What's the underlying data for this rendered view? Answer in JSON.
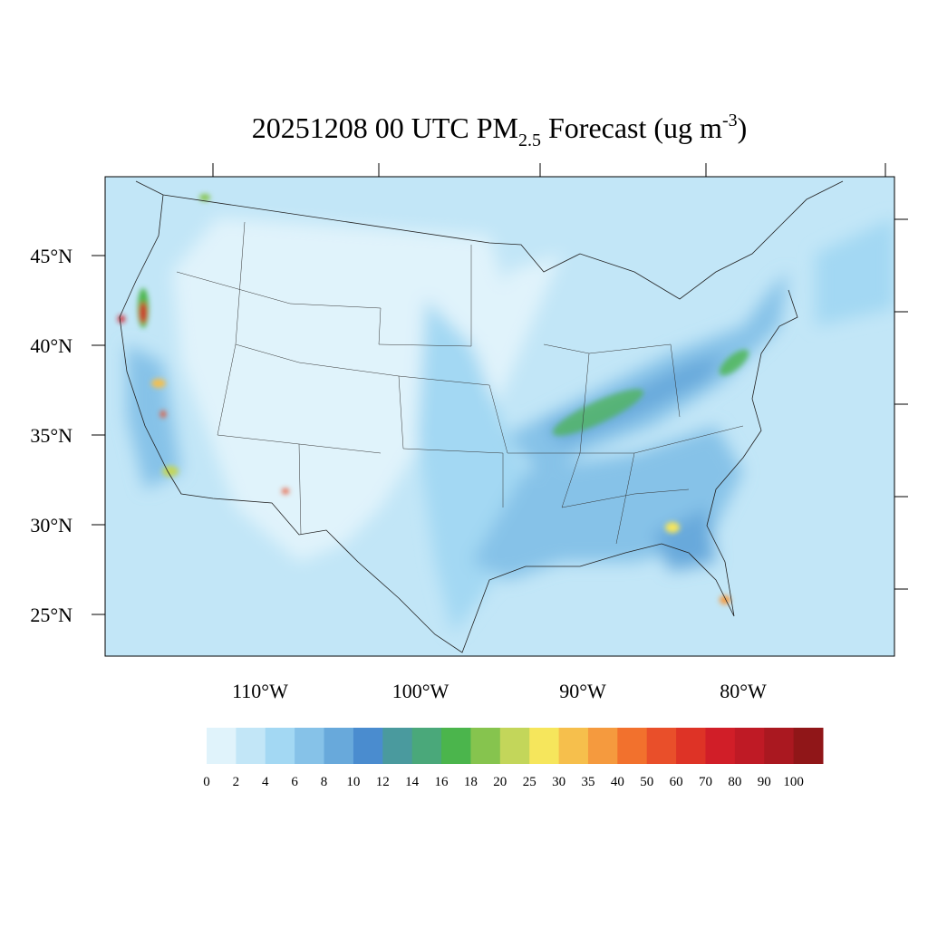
{
  "title": {
    "main": "20251208 00 UTC PM",
    "sub": "2.5",
    "rest": " Forecast (ug m",
    "sup": "-3",
    "end": ")"
  },
  "lat_labels": [
    "45°N",
    "40°N",
    "35°N",
    "30°N",
    "25°N"
  ],
  "lon_labels": [
    "110°W",
    "100°W",
    "90°W",
    "80°W"
  ],
  "colorbar": {
    "levels": [
      0,
      2,
      4,
      6,
      8,
      10,
      12,
      14,
      16,
      18,
      20,
      25,
      30,
      35,
      40,
      50,
      60,
      70,
      80,
      90,
      100
    ],
    "colors": [
      "#e0f3fb",
      "#c2e6f7",
      "#a3d8f3",
      "#86c2e8",
      "#68a9db",
      "#4a8ccf",
      "#4a9a9e",
      "#4aa87a",
      "#4bb54c",
      "#86c44e",
      "#c3d65a",
      "#f6e65c",
      "#f6bf4c",
      "#f59a3e",
      "#f2712d",
      "#e94f2a",
      "#de3326",
      "#d11e28",
      "#bf1a25",
      "#aa1820",
      "#901618"
    ]
  }
}
